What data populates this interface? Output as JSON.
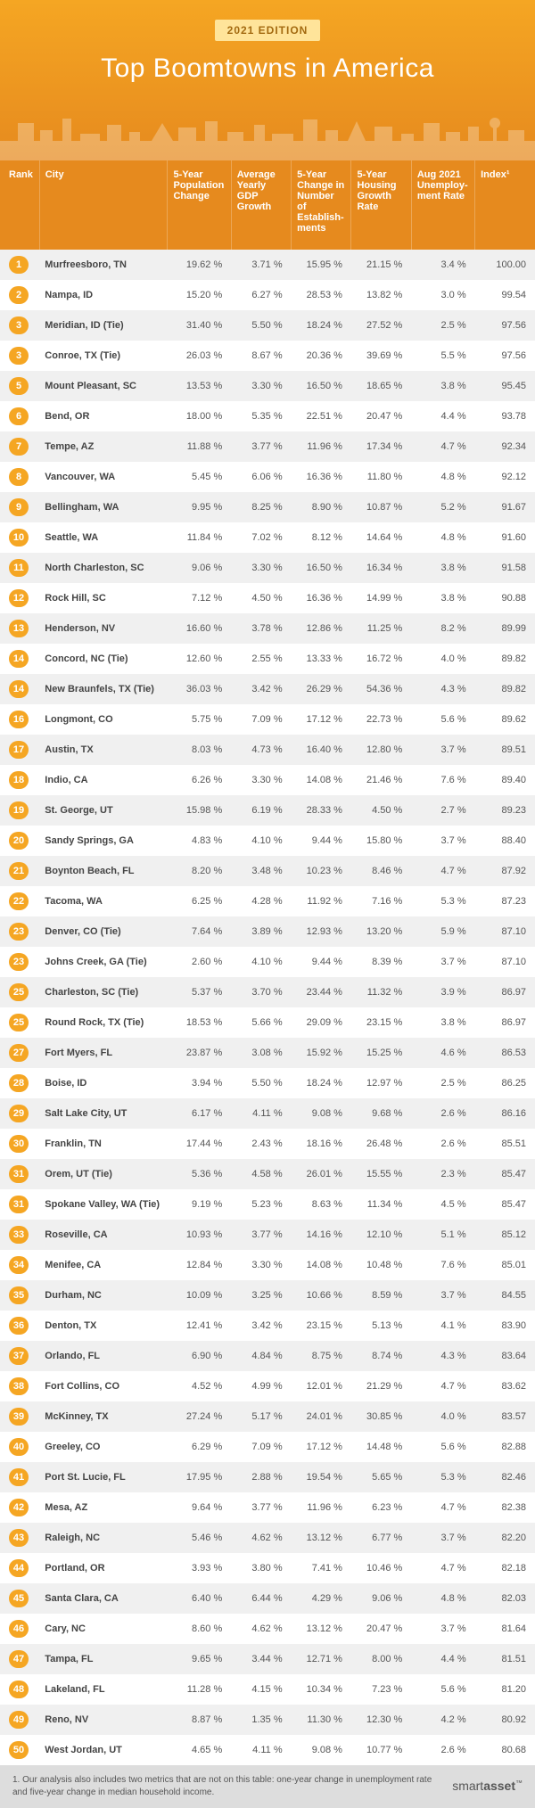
{
  "hero": {
    "edition": "2021 EDITION",
    "title": "Top Boomtowns in America",
    "bg_gradient_top": "#f5a623",
    "bg_gradient_bottom": "#e68a1e",
    "badge_bg": "#ffe49a",
    "badge_text_color": "#a36a10",
    "title_color": "#ffffff",
    "title_fontsize": 30
  },
  "table": {
    "header_bg": "#e68a1e",
    "header_text_color": "#ffffff",
    "rank_pill_bg": "#f5a623",
    "rank_pill_text": "#ffffff",
    "row_even_bg": "#f0f0f0",
    "row_odd_bg": "#ffffff",
    "cell_text_color": "#555555",
    "city_text_color": "#444444",
    "fontsize": 11,
    "columns": [
      "Rank",
      "City",
      "5-Year Population Change",
      "Average Yearly GDP Growth",
      "5-Year Change in Number of Establish-ments",
      "5-Year Housing Growth Rate",
      "Aug 2021 Unemploy-ment Rate",
      "Index¹"
    ],
    "rows": [
      {
        "rank": "1",
        "city": "Murfreesboro, TN",
        "pop": "19.62 %",
        "gdp": "3.71 %",
        "est": "15.95 %",
        "hous": "21.15 %",
        "unemp": "3.4 %",
        "idx": "100.00"
      },
      {
        "rank": "2",
        "city": "Nampa, ID",
        "pop": "15.20 %",
        "gdp": "6.27 %",
        "est": "28.53 %",
        "hous": "13.82 %",
        "unemp": "3.0 %",
        "idx": "99.54"
      },
      {
        "rank": "3",
        "city": "Meridian, ID (Tie)",
        "pop": "31.40 %",
        "gdp": "5.50 %",
        "est": "18.24 %",
        "hous": "27.52 %",
        "unemp": "2.5 %",
        "idx": "97.56"
      },
      {
        "rank": "3",
        "city": "Conroe, TX (Tie)",
        "pop": "26.03 %",
        "gdp": "8.67 %",
        "est": "20.36 %",
        "hous": "39.69 %",
        "unemp": "5.5 %",
        "idx": "97.56"
      },
      {
        "rank": "5",
        "city": "Mount Pleasant, SC",
        "pop": "13.53 %",
        "gdp": "3.30 %",
        "est": "16.50 %",
        "hous": "18.65 %",
        "unemp": "3.8 %",
        "idx": "95.45"
      },
      {
        "rank": "6",
        "city": "Bend, OR",
        "pop": "18.00 %",
        "gdp": "5.35 %",
        "est": "22.51 %",
        "hous": "20.47 %",
        "unemp": "4.4 %",
        "idx": "93.78"
      },
      {
        "rank": "7",
        "city": "Tempe, AZ",
        "pop": "11.88 %",
        "gdp": "3.77 %",
        "est": "11.96 %",
        "hous": "17.34 %",
        "unemp": "4.7 %",
        "idx": "92.34"
      },
      {
        "rank": "8",
        "city": "Vancouver, WA",
        "pop": "5.45 %",
        "gdp": "6.06 %",
        "est": "16.36 %",
        "hous": "11.80 %",
        "unemp": "4.8 %",
        "idx": "92.12"
      },
      {
        "rank": "9",
        "city": "Bellingham, WA",
        "pop": "9.95 %",
        "gdp": "8.25 %",
        "est": "8.90 %",
        "hous": "10.87 %",
        "unemp": "5.2 %",
        "idx": "91.67"
      },
      {
        "rank": "10",
        "city": "Seattle, WA",
        "pop": "11.84 %",
        "gdp": "7.02 %",
        "est": "8.12 %",
        "hous": "14.64 %",
        "unemp": "4.8 %",
        "idx": "91.60"
      },
      {
        "rank": "11",
        "city": "North Charleston, SC",
        "pop": "9.06 %",
        "gdp": "3.30 %",
        "est": "16.50 %",
        "hous": "16.34 %",
        "unemp": "3.8 %",
        "idx": "91.58"
      },
      {
        "rank": "12",
        "city": "Rock Hill, SC",
        "pop": "7.12 %",
        "gdp": "4.50 %",
        "est": "16.36 %",
        "hous": "14.99 %",
        "unemp": "3.8 %",
        "idx": "90.88"
      },
      {
        "rank": "13",
        "city": "Henderson, NV",
        "pop": "16.60 %",
        "gdp": "3.78 %",
        "est": "12.86 %",
        "hous": "11.25 %",
        "unemp": "8.2 %",
        "idx": "89.99"
      },
      {
        "rank": "14",
        "city": "Concord, NC (Tie)",
        "pop": "12.60 %",
        "gdp": "2.55 %",
        "est": "13.33 %",
        "hous": "16.72 %",
        "unemp": "4.0 %",
        "idx": "89.82"
      },
      {
        "rank": "14",
        "city": "New Braunfels, TX (Tie)",
        "pop": "36.03 %",
        "gdp": "3.42 %",
        "est": "26.29 %",
        "hous": "54.36 %",
        "unemp": "4.3 %",
        "idx": "89.82"
      },
      {
        "rank": "16",
        "city": "Longmont, CO",
        "pop": "5.75 %",
        "gdp": "7.09 %",
        "est": "17.12 %",
        "hous": "22.73 %",
        "unemp": "5.6 %",
        "idx": "89.62"
      },
      {
        "rank": "17",
        "city": "Austin, TX",
        "pop": "8.03 %",
        "gdp": "4.73 %",
        "est": "16.40 %",
        "hous": "12.80 %",
        "unemp": "3.7 %",
        "idx": "89.51"
      },
      {
        "rank": "18",
        "city": "Indio, CA",
        "pop": "6.26 %",
        "gdp": "3.30 %",
        "est": "14.08 %",
        "hous": "21.46 %",
        "unemp": "7.6 %",
        "idx": "89.40"
      },
      {
        "rank": "19",
        "city": "St. George, UT",
        "pop": "15.98 %",
        "gdp": "6.19 %",
        "est": "28.33 %",
        "hous": "4.50 %",
        "unemp": "2.7 %",
        "idx": "89.23"
      },
      {
        "rank": "20",
        "city": "Sandy Springs, GA",
        "pop": "4.83 %",
        "gdp": "4.10 %",
        "est": "9.44 %",
        "hous": "15.80 %",
        "unemp": "3.7 %",
        "idx": "88.40"
      },
      {
        "rank": "21",
        "city": "Boynton Beach, FL",
        "pop": "8.20 %",
        "gdp": "3.48 %",
        "est": "10.23 %",
        "hous": "8.46 %",
        "unemp": "4.7 %",
        "idx": "87.92"
      },
      {
        "rank": "22",
        "city": "Tacoma, WA",
        "pop": "6.25 %",
        "gdp": "4.28 %",
        "est": "11.92 %",
        "hous": "7.16 %",
        "unemp": "5.3 %",
        "idx": "87.23"
      },
      {
        "rank": "23",
        "city": "Denver, CO (Tie)",
        "pop": "7.64 %",
        "gdp": "3.89 %",
        "est": "12.93 %",
        "hous": "13.20 %",
        "unemp": "5.9 %",
        "idx": "87.10"
      },
      {
        "rank": "23",
        "city": "Johns Creek, GA (Tie)",
        "pop": "2.60 %",
        "gdp": "4.10 %",
        "est": "9.44 %",
        "hous": "8.39 %",
        "unemp": "3.7 %",
        "idx": "87.10"
      },
      {
        "rank": "25",
        "city": "Charleston, SC (Tie)",
        "pop": "5.37 %",
        "gdp": "3.70 %",
        "est": "23.44 %",
        "hous": "11.32 %",
        "unemp": "3.9 %",
        "idx": "86.97"
      },
      {
        "rank": "25",
        "city": "Round Rock, TX (Tie)",
        "pop": "18.53 %",
        "gdp": "5.66 %",
        "est": "29.09 %",
        "hous": "23.15 %",
        "unemp": "3.8 %",
        "idx": "86.97"
      },
      {
        "rank": "27",
        "city": "Fort Myers, FL",
        "pop": "23.87 %",
        "gdp": "3.08 %",
        "est": "15.92 %",
        "hous": "15.25 %",
        "unemp": "4.6 %",
        "idx": "86.53"
      },
      {
        "rank": "28",
        "city": "Boise, ID",
        "pop": "3.94 %",
        "gdp": "5.50 %",
        "est": "18.24 %",
        "hous": "12.97 %",
        "unemp": "2.5 %",
        "idx": "86.25"
      },
      {
        "rank": "29",
        "city": "Salt Lake City, UT",
        "pop": "6.17 %",
        "gdp": "4.11 %",
        "est": "9.08 %",
        "hous": "9.68 %",
        "unemp": "2.6 %",
        "idx": "86.16"
      },
      {
        "rank": "30",
        "city": "Franklin, TN",
        "pop": "17.44 %",
        "gdp": "2.43 %",
        "est": "18.16 %",
        "hous": "26.48 %",
        "unemp": "2.6 %",
        "idx": "85.51"
      },
      {
        "rank": "31",
        "city": "Orem, UT (Tie)",
        "pop": "5.36 %",
        "gdp": "4.58 %",
        "est": "26.01 %",
        "hous": "15.55 %",
        "unemp": "2.3 %",
        "idx": "85.47"
      },
      {
        "rank": "31",
        "city": "Spokane Valley, WA (Tie)",
        "pop": "9.19 %",
        "gdp": "5.23 %",
        "est": "8.63 %",
        "hous": "11.34 %",
        "unemp": "4.5 %",
        "idx": "85.47"
      },
      {
        "rank": "33",
        "city": "Roseville, CA",
        "pop": "10.93 %",
        "gdp": "3.77 %",
        "est": "14.16 %",
        "hous": "12.10 %",
        "unemp": "5.1 %",
        "idx": "85.12"
      },
      {
        "rank": "34",
        "city": "Menifee, CA",
        "pop": "12.84 %",
        "gdp": "3.30 %",
        "est": "14.08 %",
        "hous": "10.48 %",
        "unemp": "7.6 %",
        "idx": "85.01"
      },
      {
        "rank": "35",
        "city": "Durham, NC",
        "pop": "10.09 %",
        "gdp": "3.25 %",
        "est": "10.66 %",
        "hous": "8.59 %",
        "unemp": "3.7 %",
        "idx": "84.55"
      },
      {
        "rank": "36",
        "city": "Denton, TX",
        "pop": "12.41 %",
        "gdp": "3.42 %",
        "est": "23.15 %",
        "hous": "5.13 %",
        "unemp": "4.1 %",
        "idx": "83.90"
      },
      {
        "rank": "37",
        "city": "Orlando, FL",
        "pop": "6.90 %",
        "gdp": "4.84 %",
        "est": "8.75 %",
        "hous": "8.74 %",
        "unemp": "4.3 %",
        "idx": "83.64"
      },
      {
        "rank": "38",
        "city": "Fort Collins, CO",
        "pop": "4.52 %",
        "gdp": "4.99 %",
        "est": "12.01 %",
        "hous": "21.29 %",
        "unemp": "4.7 %",
        "idx": "83.62"
      },
      {
        "rank": "39",
        "city": "McKinney, TX",
        "pop": "27.24 %",
        "gdp": "5.17 %",
        "est": "24.01 %",
        "hous": "30.85 %",
        "unemp": "4.0 %",
        "idx": "83.57"
      },
      {
        "rank": "40",
        "city": "Greeley, CO",
        "pop": "6.29 %",
        "gdp": "7.09 %",
        "est": "17.12 %",
        "hous": "14.48 %",
        "unemp": "5.6 %",
        "idx": "82.88"
      },
      {
        "rank": "41",
        "city": "Port St. Lucie, FL",
        "pop": "17.95 %",
        "gdp": "2.88 %",
        "est": "19.54 %",
        "hous": "5.65 %",
        "unemp": "5.3 %",
        "idx": "82.46"
      },
      {
        "rank": "42",
        "city": "Mesa, AZ",
        "pop": "9.64 %",
        "gdp": "3.77 %",
        "est": "11.96 %",
        "hous": "6.23 %",
        "unemp": "4.7 %",
        "idx": "82.38"
      },
      {
        "rank": "43",
        "city": "Raleigh, NC",
        "pop": "5.46 %",
        "gdp": "4.62 %",
        "est": "13.12 %",
        "hous": "6.77 %",
        "unemp": "3.7 %",
        "idx": "82.20"
      },
      {
        "rank": "44",
        "city": "Portland, OR",
        "pop": "3.93 %",
        "gdp": "3.80 %",
        "est": "7.41 %",
        "hous": "10.46 %",
        "unemp": "4.7 %",
        "idx": "82.18"
      },
      {
        "rank": "45",
        "city": "Santa Clara, CA",
        "pop": "6.40 %",
        "gdp": "6.44 %",
        "est": "4.29 %",
        "hous": "9.06 %",
        "unemp": "4.8 %",
        "idx": "82.03"
      },
      {
        "rank": "46",
        "city": "Cary, NC",
        "pop": "8.60 %",
        "gdp": "4.62 %",
        "est": "13.12 %",
        "hous": "20.47 %",
        "unemp": "3.7 %",
        "idx": "81.64"
      },
      {
        "rank": "47",
        "city": "Tampa, FL",
        "pop": "9.65 %",
        "gdp": "3.44 %",
        "est": "12.71 %",
        "hous": "8.00 %",
        "unemp": "4.4 %",
        "idx": "81.51"
      },
      {
        "rank": "48",
        "city": "Lakeland, FL",
        "pop": "11.28 %",
        "gdp": "4.15 %",
        "est": "10.34 %",
        "hous": "7.23 %",
        "unemp": "5.6 %",
        "idx": "81.20"
      },
      {
        "rank": "49",
        "city": "Reno, NV",
        "pop": "8.87 %",
        "gdp": "1.35 %",
        "est": "11.30 %",
        "hous": "12.30 %",
        "unemp": "4.2 %",
        "idx": "80.92"
      },
      {
        "rank": "50",
        "city": "West Jordan, UT",
        "pop": "4.65 %",
        "gdp": "4.11 %",
        "est": "9.08 %",
        "hous": "10.77 %",
        "unemp": "2.6 %",
        "idx": "80.68"
      }
    ]
  },
  "footer": {
    "note": "1.  Our analysis also includes two metrics that are not on this table: one-year change in unemployment rate and five-year change in median household income.",
    "brand_light": "smart",
    "brand_bold": "asset",
    "brand_tm": "™",
    "bg": "#dddddd",
    "text_color": "#555555"
  }
}
